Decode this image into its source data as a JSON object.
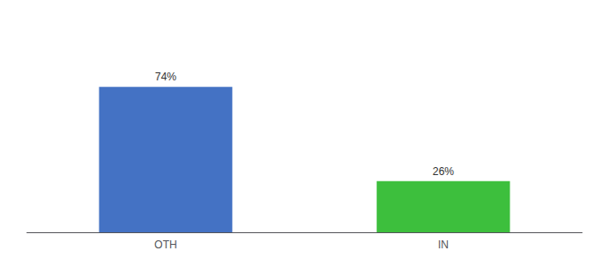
{
  "chart_data": {
    "type": "bar",
    "categories": [
      "OTH",
      "IN"
    ],
    "values": [
      74,
      26
    ],
    "value_labels": [
      "74%",
      "26%"
    ],
    "colors": [
      "#4472c4",
      "#3dbf3d"
    ],
    "ylim": [
      0,
      100
    ],
    "grid": false,
    "data_labels": true,
    "tick_labels": "x"
  }
}
